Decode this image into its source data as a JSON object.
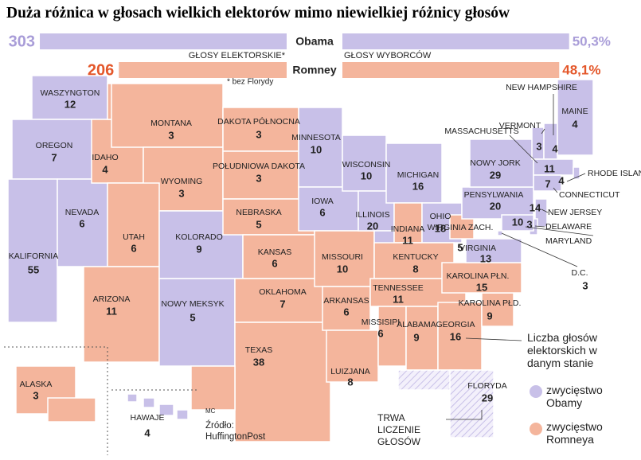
{
  "title": "Duża różnica w głosach wielkich elektorów mimo niewielkiej różnicy głosów",
  "candidates": [
    {
      "name": "Obama",
      "color": "#c8c0e8",
      "text_color": "#a99dd8"
    },
    {
      "name": "Romney",
      "color": "#f4b59c",
      "text_color": "#e4572a"
    }
  ],
  "electoral": {
    "label": "GŁOSY ELEKTORSKIE*",
    "note": "* bez Florydy",
    "values": [
      303,
      206
    ]
  },
  "popular": {
    "label": "GŁOSY WYBORCÓW",
    "values": [
      50.3,
      48.1
    ],
    "value_labels": [
      "50,3%",
      "48,1%"
    ]
  },
  "legend": [
    {
      "label": "zwycięstwo Obamy",
      "color": "#c8c0e8"
    },
    {
      "label": "zwycięstwo Romneya",
      "color": "#f4b59c"
    },
    {
      "label": "TRWA LICZENIE GŁOSÓW",
      "color": "#e4def4"
    }
  ],
  "votes_note": "Liczba głosów elektorskich w danym stanie",
  "author": "MC",
  "source": "Źródło: HuffingtonPost",
  "states": [
    {
      "name": "WASZYNGTON",
      "votes": 12,
      "result": 0
    },
    {
      "name": "OREGON",
      "votes": 7,
      "result": 0
    },
    {
      "name": "KALIFORNIA",
      "votes": 55,
      "result": 0
    },
    {
      "name": "NEVADA",
      "votes": 6,
      "result": 0
    },
    {
      "name": "IDAHO",
      "votes": 4,
      "result": 1
    },
    {
      "name": "MONTANA",
      "votes": 3,
      "result": 1
    },
    {
      "name": "WYOMING",
      "votes": 3,
      "result": 1
    },
    {
      "name": "UTAH",
      "votes": 6,
      "result": 1
    },
    {
      "name": "ARIZONA",
      "votes": 11,
      "result": 1
    },
    {
      "name": "KOLORADO",
      "votes": 9,
      "result": 0
    },
    {
      "name": "NOWY MEKSYK",
      "votes": 5,
      "result": 0
    },
    {
      "name": "DAKOTA PÓŁNOCNA",
      "votes": 3,
      "result": 1
    },
    {
      "name": "POŁUDNIOWA DAKOTA",
      "votes": 3,
      "result": 1
    },
    {
      "name": "NEBRASKA",
      "votes": 5,
      "result": 1
    },
    {
      "name": "KANSAS",
      "votes": 6,
      "result": 1
    },
    {
      "name": "OKLAHOMA",
      "votes": 7,
      "result": 1
    },
    {
      "name": "TEXAS",
      "votes": 38,
      "result": 1
    },
    {
      "name": "MINNESOTA",
      "votes": 10,
      "result": 0
    },
    {
      "name": "IOWA",
      "votes": 6,
      "result": 0
    },
    {
      "name": "MISSOURI",
      "votes": 10,
      "result": 1
    },
    {
      "name": "ARKANSAS",
      "votes": 6,
      "result": 1
    },
    {
      "name": "LUIZJANA",
      "votes": 8,
      "result": 1
    },
    {
      "name": "WISCONSIN",
      "votes": 10,
      "result": 0
    },
    {
      "name": "ILLINOIS",
      "votes": 20,
      "result": 0
    },
    {
      "name": "MICHIGAN",
      "votes": 16,
      "result": 0
    },
    {
      "name": "INDIANA",
      "votes": 11,
      "result": 1
    },
    {
      "name": "OHIO",
      "votes": 18,
      "result": 0
    },
    {
      "name": "KENTUCKY",
      "votes": 8,
      "result": 1
    },
    {
      "name": "TENNESSEE",
      "votes": 11,
      "result": 1
    },
    {
      "name": "MISSISIPI",
      "votes": 6,
      "result": 1
    },
    {
      "name": "ALABAMA",
      "votes": 9,
      "result": 1
    },
    {
      "name": "GEORGIA",
      "votes": 16,
      "result": 1
    },
    {
      "name": "FLORYDA",
      "votes": 29,
      "result": 2
    },
    {
      "name": "KAROLINA PŁD.",
      "votes": 9,
      "result": 1
    },
    {
      "name": "KAROLINA PŁN.",
      "votes": 15,
      "result": 1
    },
    {
      "name": "VIRGINIA",
      "votes": 13,
      "result": 0
    },
    {
      "name": "WIRGINIA ZACH.",
      "votes": 5,
      "result": 1
    },
    {
      "name": "PENSYLWANIA",
      "votes": 20,
      "result": 0
    },
    {
      "name": "NOWY JORK",
      "votes": 29,
      "result": 0
    },
    {
      "name": "VERMONT",
      "votes": 3,
      "result": 0
    },
    {
      "name": "NEW HAMPSHIRE",
      "votes": 4,
      "result": 0
    },
    {
      "name": "MAINE",
      "votes": 4,
      "result": 0
    },
    {
      "name": "MASSACHUSETTS",
      "votes": 11,
      "result": 0
    },
    {
      "name": "RHODE ISLAND",
      "votes": 4,
      "result": 0
    },
    {
      "name": "CONNECTICUT",
      "votes": 7,
      "result": 0
    },
    {
      "name": "NEW JERSEY",
      "votes": 14,
      "result": 0
    },
    {
      "name": "DELAWARE",
      "votes": 3,
      "result": 0
    },
    {
      "name": "MARYLAND",
      "votes": 10,
      "result": 0
    },
    {
      "name": "D.C.",
      "votes": 3,
      "result": 0
    },
    {
      "name": "ALASKA",
      "votes": 3,
      "result": 1
    },
    {
      "name": "HAWAJE",
      "votes": 4,
      "result": 0
    }
  ]
}
